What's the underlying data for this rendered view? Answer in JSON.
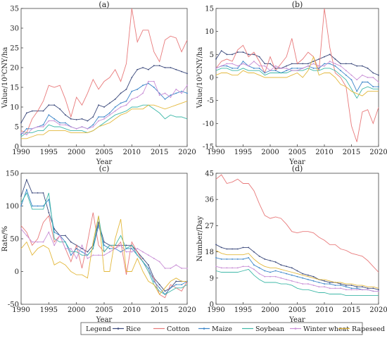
{
  "x_axis_label": "Year",
  "legend_title": "Legend",
  "series_colors": {
    "Rice": "#3c4a7c",
    "Cotton": "#e8797a",
    "Maize": "#3d86c9",
    "Soybean": "#3fb8a8",
    "Winter wheat": "#c98fd6",
    "Rapeseed": "#e3b83c"
  },
  "chart_data": [
    {
      "panel": "(a)",
      "type": "line",
      "title": "(a)",
      "xlabel": "Year",
      "ylabel": "Value/10³CNY/ha",
      "xlim": [
        1990,
        2020
      ],
      "ylim": [
        0,
        35
      ],
      "xticks": [
        1990,
        1995,
        2000,
        2005,
        2010,
        2015,
        2020
      ],
      "yticks": [
        0,
        5,
        10,
        15,
        20,
        25,
        30,
        35
      ],
      "x": [
        1990,
        1991,
        1992,
        1993,
        1994,
        1995,
        1996,
        1997,
        1998,
        1999,
        2000,
        2001,
        2002,
        2003,
        2004,
        2005,
        2006,
        2007,
        2008,
        2009,
        2010,
        2011,
        2012,
        2013,
        2014,
        2015,
        2016,
        2017,
        2018,
        2019,
        2020
      ],
      "series": [
        {
          "name": "Rice",
          "values": [
            6.0,
            8.5,
            9.0,
            9.0,
            9.0,
            10.5,
            10.5,
            9.5,
            8.0,
            7.0,
            6.8,
            7.0,
            6.5,
            7.5,
            10.5,
            10.0,
            11.0,
            12.0,
            13.5,
            14.5,
            17.5,
            19.5,
            20.0,
            19.5,
            20.5,
            20.5,
            20.0,
            20.0,
            19.5,
            19.0,
            18.5
          ]
        },
        {
          "name": "Cotton",
          "values": [
            4.0,
            3.5,
            7.0,
            9.0,
            11.5,
            15.5,
            15.0,
            15.5,
            12.0,
            7.5,
            12.5,
            10.5,
            13.5,
            17.0,
            14.5,
            16.5,
            17.5,
            19.5,
            16.5,
            21.0,
            35.0,
            26.5,
            29.5,
            29.5,
            24.0,
            21.5,
            27.0,
            28.0,
            27.5,
            24.0,
            27.0
          ]
        },
        {
          "name": "Maize",
          "values": [
            3.0,
            4.5,
            4.5,
            5.0,
            5.5,
            8.0,
            7.0,
            6.0,
            6.0,
            5.0,
            4.5,
            5.0,
            4.5,
            5.5,
            7.5,
            7.5,
            8.5,
            10.0,
            11.0,
            11.5,
            14.0,
            14.5,
            15.5,
            16.0,
            15.0,
            13.5,
            12.0,
            13.0,
            13.5,
            14.0,
            13.5
          ]
        },
        {
          "name": "Soybean",
          "values": [
            2.5,
            3.5,
            3.5,
            4.0,
            4.0,
            5.5,
            5.0,
            5.0,
            4.5,
            4.0,
            4.0,
            4.0,
            3.5,
            4.0,
            5.0,
            6.0,
            7.0,
            8.0,
            8.5,
            9.0,
            10.0,
            10.0,
            10.5,
            10.5,
            9.5,
            8.5,
            7.0,
            8.0,
            7.5,
            7.5,
            7.0
          ]
        },
        {
          "name": "Winter wheat",
          "values": [
            3.5,
            3.0,
            4.5,
            5.0,
            5.0,
            6.5,
            6.5,
            5.5,
            5.5,
            5.0,
            4.5,
            5.0,
            4.5,
            5.0,
            6.5,
            7.0,
            8.0,
            9.0,
            10.0,
            10.5,
            12.0,
            12.5,
            13.5,
            16.5,
            16.5,
            13.0,
            13.5,
            12.5,
            14.5,
            13.5,
            15.5
          ]
        },
        {
          "name": "Rapeseed",
          "values": [
            2.0,
            2.0,
            2.5,
            3.0,
            3.0,
            4.0,
            4.0,
            4.0,
            4.0,
            3.5,
            3.5,
            3.5,
            3.5,
            4.0,
            5.0,
            5.5,
            6.0,
            7.0,
            8.0,
            8.5,
            9.5,
            9.5,
            9.5,
            10.5,
            10.5,
            10.0,
            9.5,
            10.0,
            10.5,
            11.0,
            11.5
          ]
        }
      ]
    },
    {
      "panel": "(b)",
      "type": "line",
      "title": "(b)",
      "xlabel": "Year",
      "ylabel": "Value/10³CNY/ha",
      "xlim": [
        1990,
        2020
      ],
      "ylim": [
        -15,
        15
      ],
      "xticks": [
        1990,
        1995,
        2000,
        2005,
        2010,
        2015,
        2020
      ],
      "yticks": [
        -15,
        -10,
        -5,
        0,
        5,
        10,
        15
      ],
      "x": [
        1990,
        1991,
        1992,
        1993,
        1994,
        1995,
        1996,
        1997,
        1998,
        1999,
        2000,
        2001,
        2002,
        2003,
        2004,
        2005,
        2006,
        2007,
        2008,
        2009,
        2010,
        2011,
        2012,
        2013,
        2014,
        2015,
        2016,
        2017,
        2018,
        2019,
        2020
      ],
      "series": [
        {
          "name": "Rice",
          "values": [
            4.0,
            5.8,
            5.0,
            5.0,
            5.5,
            5.5,
            5.0,
            5.0,
            4.5,
            3.0,
            3.0,
            2.0,
            2.0,
            2.5,
            3.0,
            3.0,
            3.0,
            3.0,
            3.5,
            4.0,
            4.5,
            5.0,
            4.0,
            3.0,
            3.0,
            3.0,
            2.5,
            2.5,
            2.0,
            1.0,
            0.5
          ]
        },
        {
          "name": "Cotton",
          "values": [
            2.0,
            3.5,
            4.0,
            3.5,
            6.0,
            7.0,
            4.5,
            5.5,
            3.5,
            1.0,
            4.5,
            1.5,
            3.0,
            4.5,
            8.5,
            3.0,
            4.0,
            5.5,
            4.5,
            1.5,
            15.0,
            6.5,
            1.0,
            0.0,
            -2.0,
            -10.5,
            -14.0,
            -7.5,
            -7.0,
            -10.0,
            -6.5
          ]
        },
        {
          "name": "Maize",
          "values": [
            2.0,
            2.5,
            2.5,
            2.0,
            2.0,
            3.5,
            2.5,
            2.0,
            2.0,
            1.0,
            1.5,
            1.5,
            1.0,
            1.5,
            2.0,
            2.0,
            2.0,
            2.5,
            2.0,
            2.0,
            3.0,
            3.0,
            2.5,
            1.5,
            0.5,
            -0.5,
            -3.0,
            -1.0,
            -1.0,
            -2.0,
            -2.0
          ]
        },
        {
          "name": "Soybean",
          "values": [
            1.5,
            2.0,
            2.0,
            1.5,
            1.5,
            2.0,
            1.5,
            1.5,
            1.5,
            0.5,
            1.0,
            1.0,
            1.0,
            1.0,
            1.5,
            1.5,
            1.5,
            2.0,
            1.5,
            1.5,
            2.0,
            2.0,
            1.5,
            0.5,
            -0.5,
            -2.5,
            -4.5,
            -2.5,
            -2.0,
            -2.5,
            -2.5
          ]
        },
        {
          "name": "Winter wheat",
          "values": [
            2.0,
            2.5,
            3.0,
            3.0,
            2.5,
            3.0,
            2.5,
            3.5,
            2.5,
            2.5,
            1.5,
            2.5,
            2.0,
            2.0,
            1.5,
            1.5,
            2.0,
            2.5,
            3.0,
            2.5,
            2.5,
            3.5,
            3.0,
            2.5,
            1.5,
            0.5,
            -0.5,
            0.5,
            0.0,
            0.0,
            -1.0
          ]
        },
        {
          "name": "Rapeseed",
          "values": [
            0.5,
            1.0,
            1.0,
            0.5,
            0.5,
            1.5,
            1.0,
            1.0,
            0.5,
            0.0,
            0.0,
            0.0,
            0.0,
            0.0,
            0.5,
            1.0,
            0.0,
            1.5,
            4.5,
            0.5,
            1.0,
            1.0,
            0.0,
            -1.5,
            -2.0,
            -3.0,
            -3.5,
            -4.0,
            -3.0,
            -3.0,
            -3.0
          ]
        }
      ]
    },
    {
      "panel": "(c)",
      "type": "line",
      "title": "(c)",
      "xlabel": "Year",
      "ylabel": "Rate/%",
      "xlim": [
        1990,
        2020
      ],
      "ylim": [
        -50,
        150
      ],
      "xticks": [
        1990,
        1995,
        2000,
        2005,
        2010,
        2015,
        2020
      ],
      "yticks": [
        -50,
        0,
        50,
        100,
        150
      ],
      "x": [
        1990,
        1991,
        1992,
        1993,
        1994,
        1995,
        1996,
        1997,
        1998,
        1999,
        2000,
        2001,
        2002,
        2003,
        2004,
        2005,
        2006,
        2007,
        2008,
        2009,
        2010,
        2011,
        2012,
        2013,
        2014,
        2015,
        2016,
        2017,
        2018,
        2019,
        2020
      ],
      "series": [
        {
          "name": "Rice",
          "values": [
            115,
            140,
            120,
            120,
            120,
            90,
            65,
            55,
            55,
            45,
            40,
            35,
            30,
            40,
            75,
            45,
            40,
            40,
            40,
            40,
            40,
            30,
            20,
            10,
            -10,
            -20,
            -30,
            -25,
            -15,
            -15,
            -15
          ]
        },
        {
          "name": "Cotton",
          "values": [
            70,
            60,
            40,
            50,
            75,
            85,
            45,
            55,
            35,
            15,
            40,
            5,
            45,
            90,
            40,
            30,
            40,
            35,
            45,
            -5,
            45,
            30,
            15,
            0,
            -10,
            -35,
            -40,
            -20,
            -25,
            -30,
            -15
          ]
        },
        {
          "name": "Maize",
          "values": [
            100,
            125,
            100,
            100,
            100,
            110,
            60,
            55,
            45,
            25,
            35,
            30,
            25,
            35,
            70,
            40,
            35,
            35,
            30,
            35,
            35,
            25,
            15,
            5,
            -15,
            -25,
            -35,
            -25,
            -20,
            -20,
            -15
          ]
        },
        {
          "name": "Soybean",
          "values": [
            105,
            120,
            95,
            95,
            95,
            120,
            50,
            45,
            45,
            30,
            30,
            25,
            25,
            35,
            85,
            30,
            40,
            40,
            55,
            35,
            40,
            25,
            15,
            0,
            -20,
            -30,
            -35,
            -30,
            -25,
            -25,
            -20
          ]
        },
        {
          "name": "Winter wheat",
          "values": [
            65,
            55,
            45,
            45,
            45,
            60,
            40,
            55,
            35,
            35,
            20,
            40,
            20,
            25,
            25,
            25,
            30,
            35,
            40,
            30,
            30,
            35,
            30,
            25,
            20,
            15,
            5,
            5,
            10,
            5,
            5
          ]
        },
        {
          "name": "Rapeseed",
          "values": [
            35,
            45,
            25,
            35,
            40,
            35,
            10,
            15,
            10,
            0,
            -5,
            -5,
            -10,
            45,
            85,
            0,
            0,
            50,
            80,
            0,
            0,
            20,
            0,
            -15,
            -20,
            -35,
            -25,
            -15,
            -10,
            -15,
            -15
          ]
        }
      ]
    },
    {
      "panel": "(d)",
      "type": "line",
      "title": "(d)",
      "xlabel": "Year",
      "ylabel": "Number/Day",
      "xlim": [
        1990,
        2020
      ],
      "ylim": [
        0,
        45
      ],
      "xticks": [
        1990,
        1995,
        2000,
        2005,
        2010,
        2015,
        2020
      ],
      "yticks": [
        0,
        9,
        18,
        27,
        36,
        45
      ],
      "x": [
        1990,
        1991,
        1992,
        1993,
        1994,
        1995,
        1996,
        1997,
        1998,
        1999,
        2000,
        2001,
        2002,
        2003,
        2004,
        2005,
        2006,
        2007,
        2008,
        2009,
        2010,
        2011,
        2012,
        2013,
        2014,
        2015,
        2016,
        2017,
        2018,
        2019,
        2020
      ],
      "series": [
        {
          "name": "Rice",
          "values": [
            20.5,
            19.5,
            19.0,
            19.0,
            19.0,
            19.5,
            19.5,
            18.0,
            16.5,
            15.5,
            15.0,
            14.5,
            13.5,
            13.0,
            12.5,
            11.5,
            10.5,
            10.0,
            9.5,
            8.5,
            8.0,
            7.5,
            7.5,
            7.0,
            6.5,
            6.5,
            6.0,
            6.0,
            5.5,
            5.5,
            5.0
          ]
        },
        {
          "name": "Cotton",
          "values": [
            43.0,
            44.5,
            41.5,
            42.0,
            43.0,
            41.5,
            41.5,
            39.0,
            34.5,
            30.5,
            29.5,
            30.0,
            29.5,
            27.5,
            25.0,
            24.5,
            25.0,
            25.0,
            24.5,
            23.0,
            22.0,
            20.5,
            20.5,
            19.0,
            18.5,
            17.5,
            17.0,
            16.5,
            15.0,
            13.0,
            11.0
          ]
        },
        {
          "name": "Maize",
          "values": [
            16.0,
            15.5,
            15.5,
            15.5,
            15.5,
            15.5,
            16.0,
            13.5,
            12.5,
            11.5,
            11.0,
            11.5,
            11.0,
            10.5,
            10.0,
            9.5,
            9.0,
            8.5,
            8.0,
            7.5,
            7.0,
            7.0,
            6.5,
            6.5,
            6.0,
            5.5,
            5.5,
            5.0,
            5.0,
            4.5,
            4.5
          ]
        },
        {
          "name": "Soybean",
          "values": [
            11.5,
            11.0,
            11.0,
            11.0,
            11.0,
            11.5,
            12.0,
            10.0,
            8.5,
            7.5,
            7.5,
            7.5,
            7.0,
            7.0,
            6.5,
            5.5,
            5.0,
            5.0,
            4.5,
            4.0,
            4.0,
            3.5,
            3.5,
            3.5,
            3.0,
            3.0,
            3.0,
            3.0,
            3.0,
            3.0,
            3.0
          ]
        },
        {
          "name": "Winter wheat",
          "values": [
            13.0,
            12.5,
            12.5,
            12.5,
            12.5,
            13.0,
            13.0,
            12.0,
            10.5,
            9.5,
            9.5,
            9.5,
            9.0,
            8.5,
            8.0,
            7.5,
            7.0,
            7.0,
            6.5,
            6.0,
            6.0,
            5.5,
            5.5,
            5.5,
            5.0,
            5.0,
            5.0,
            5.0,
            5.0,
            4.5,
            4.5
          ]
        },
        {
          "name": "Rapeseed",
          "values": [
            18.5,
            17.5,
            17.0,
            17.0,
            17.0,
            17.0,
            17.5,
            15.5,
            14.0,
            13.0,
            12.5,
            12.5,
            12.0,
            11.5,
            11.0,
            10.5,
            10.0,
            9.5,
            9.0,
            8.5,
            8.5,
            8.0,
            7.5,
            7.5,
            7.0,
            7.0,
            6.5,
            6.5,
            6.0,
            6.0,
            5.5
          ]
        }
      ]
    }
  ]
}
